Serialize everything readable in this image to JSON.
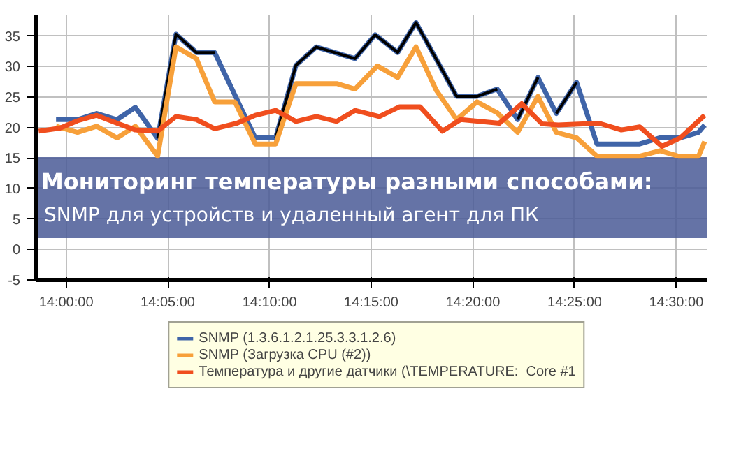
{
  "chart_data": {
    "type": "line",
    "title": "Мониторинг температуры разными способами:",
    "subtitle": "SNMP для устройств и удаленный агент для ПК",
    "xlim": [
      13.975,
      14.525
    ],
    "ylim": [
      -5,
      38.5
    ],
    "xticks": [
      {
        "value": 14.0,
        "label": "14:00:00"
      },
      {
        "value": 14.0833,
        "label": "14:05:00"
      },
      {
        "value": 14.1667,
        "label": "14:10:00"
      },
      {
        "value": 14.25,
        "label": "14:15:00"
      },
      {
        "value": 14.3333,
        "label": "14:20:00"
      },
      {
        "value": 14.4167,
        "label": "14:25:00"
      },
      {
        "value": 14.5,
        "label": "14:30:00"
      }
    ],
    "yticks": [
      -5,
      0,
      5,
      10,
      15,
      20,
      25,
      30,
      35
    ],
    "grid": true,
    "legend": "bottom",
    "marker": "none",
    "line_style": "solid",
    "series": [
      {
        "name": "SNMP (1.3.6.1.2.1.25.3.3.1.2.6)",
        "color": "#3f64a8",
        "x": [
          13.9917,
          14.0093,
          14.025,
          14.0417,
          14.0567,
          14.075,
          14.09,
          14.1067,
          14.1217,
          14.155,
          14.1717,
          14.1883,
          14.205,
          14.2367,
          14.2533,
          14.2717,
          14.2867,
          14.3033,
          14.32,
          14.3367,
          14.3533,
          14.37,
          14.3867,
          14.4017,
          14.4183,
          14.435,
          14.47,
          14.4867,
          14.5033,
          14.5183,
          14.5233
        ],
        "values": [
          21.3,
          21.3,
          22.3,
          21.3,
          23.3,
          18.2,
          35.3,
          32.3,
          32.3,
          18.3,
          18.3,
          30.2,
          33.2,
          31.3,
          35.2,
          32.3,
          37.2,
          31.2,
          25.1,
          25.1,
          26.3,
          21.3,
          28.2,
          22.3,
          27.4,
          17.3,
          17.3,
          18.3,
          18.3,
          19.2,
          20.4
        ]
      },
      {
        "color": "#000000",
        "x": [
          14.075,
          14.09,
          14.1067,
          14.1217,
          14.13,
          14.1717,
          14.1883,
          14.205,
          14.2367,
          14.2533,
          14.2717,
          14.2867,
          14.3033,
          14.32,
          14.3367,
          14.3533,
          14.362,
          14.37,
          14.3867,
          14.394,
          14.4017,
          14.4183
        ],
        "values": [
          18.2,
          35.3,
          32.3,
          32.3,
          null,
          18.3,
          30.2,
          33.2,
          31.3,
          35.2,
          32.3,
          37.2,
          31.2,
          25.1,
          25.1,
          26.3,
          null,
          21.3,
          28.2,
          null,
          22.3,
          27.4
        ]
      },
      {
        "name": "SNMP (Загрузка CPU (#2))",
        "color": "#f7a03a",
        "x": [
          13.9917,
          14.0093,
          14.025,
          14.0417,
          14.0567,
          14.075,
          14.09,
          14.1067,
          14.1217,
          14.1383,
          14.155,
          14.1717,
          14.1883,
          14.2217,
          14.2367,
          14.255,
          14.2717,
          14.2867,
          14.3033,
          14.32,
          14.3367,
          14.3533,
          14.37,
          14.3867,
          14.4017,
          14.4183,
          14.435,
          14.47,
          14.4867,
          14.5017,
          14.5183,
          14.5233
        ],
        "values": [
          20.2,
          19.2,
          20.2,
          18.3,
          20.2,
          15.3,
          33.2,
          31.3,
          24.2,
          24.2,
          17.3,
          17.3,
          27.2,
          27.2,
          26.3,
          30.1,
          28.2,
          33.2,
          26.1,
          21.3,
          24.2,
          22.4,
          19.2,
          25.1,
          19.2,
          18.3,
          15.3,
          15.3,
          16.2,
          15.3,
          15.3,
          17.7
        ]
      },
      {
        "name": "Температура и другие датчики (\\TEMPERATURE:  Core #1",
        "color": "#f04e1e",
        "x": [
          13.9775,
          13.995,
          14.0093,
          14.025,
          14.0417,
          14.0567,
          14.075,
          14.09,
          14.1067,
          14.1217,
          14.14,
          14.155,
          14.1717,
          14.1883,
          14.205,
          14.2217,
          14.2367,
          14.2567,
          14.2733,
          14.29,
          14.3083,
          14.3233,
          14.355,
          14.3733,
          14.39,
          14.4033,
          14.4367,
          14.455,
          14.47,
          14.4883,
          14.5033,
          14.5233
        ],
        "values": [
          19.4,
          19.9,
          21.1,
          22.0,
          20.7,
          19.6,
          19.4,
          21.8,
          21.3,
          19.8,
          20.7,
          22.0,
          22.8,
          21.0,
          21.8,
          21.0,
          22.8,
          21.8,
          23.4,
          23.4,
          19.4,
          21.3,
          20.7,
          23.9,
          20.6,
          20.4,
          20.7,
          19.6,
          20.1,
          16.9,
          18.3,
          22.0
        ]
      }
    ]
  }
}
